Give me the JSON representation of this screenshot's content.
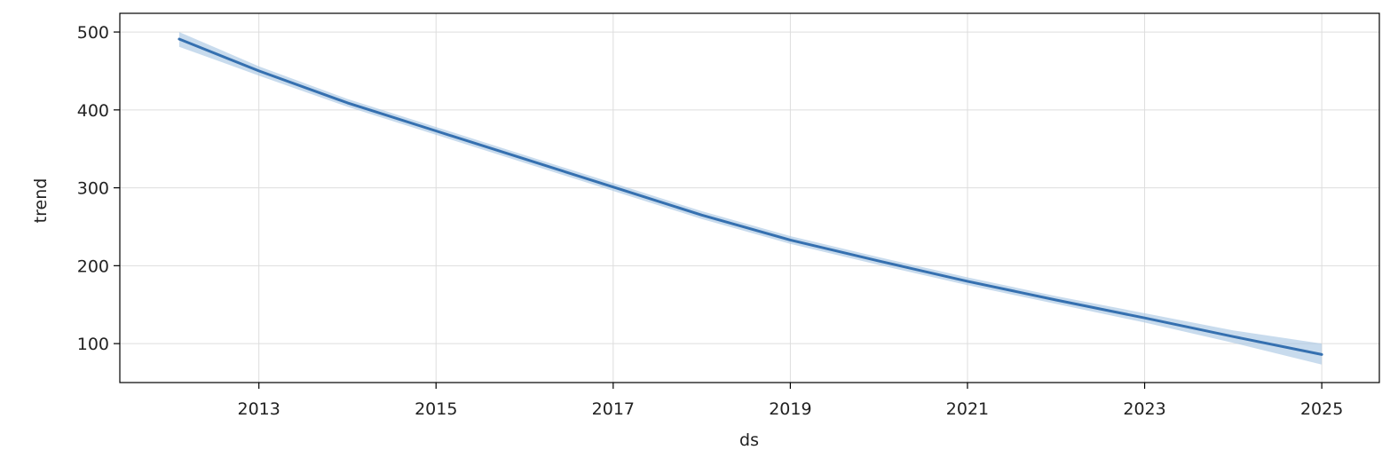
{
  "chart_data": {
    "type": "line",
    "title": "",
    "xlabel": "ds",
    "ylabel": "trend",
    "grid": true,
    "xlim": [
      2011.43,
      2025.65
    ],
    "ylim": [
      50,
      524
    ],
    "x_ticks": [
      2013,
      2015,
      2017,
      2019,
      2021,
      2023,
      2025
    ],
    "y_ticks": [
      100,
      200,
      300,
      400,
      500
    ],
    "series": [
      {
        "color": "#3570b0",
        "band_color": "#aac8e4",
        "x": [
          2012.1,
          2013.0,
          2014.0,
          2015.0,
          2016.0,
          2017.0,
          2018.0,
          2019.0,
          2020.0,
          2021.0,
          2022.0,
          2023.0,
          2024.0,
          2025.0
        ],
        "y": [
          491,
          450,
          409,
          373,
          337,
          301,
          265,
          233,
          206,
          180,
          156,
          133,
          109,
          86
        ],
        "lower": [
          481,
          444,
          404,
          368,
          332,
          296,
          260,
          228,
          201,
          175,
          151,
          127,
          101,
          73
        ],
        "upper": [
          500,
          456,
          414,
          378,
          342,
          306,
          270,
          238,
          211,
          185,
          161,
          139,
          117,
          100
        ]
      }
    ]
  }
}
